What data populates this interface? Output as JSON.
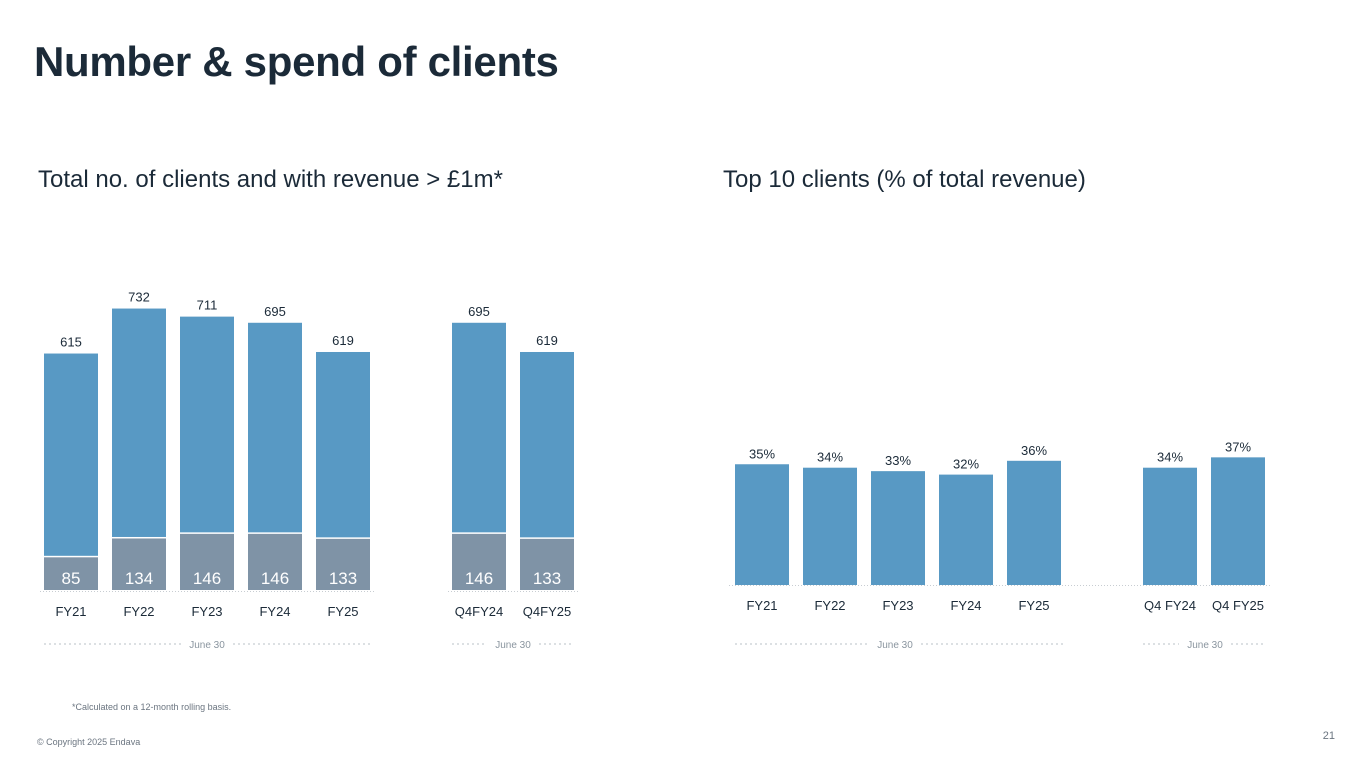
{
  "page": {
    "title": "Number & spend of clients",
    "footnote": "*Calculated on a 12-month rolling basis.",
    "copyright": "© Copyright 2025 Endava",
    "page_number": "21"
  },
  "colors": {
    "bar_blue": "#5899c4",
    "bar_grey": "#7f93a6",
    "text_dark": "#1b2a38",
    "muted": "#8a959f"
  },
  "chart_data": [
    {
      "type": "bar",
      "stacked": true,
      "title": "Total no. of clients and with revenue > £1m*",
      "categories": [
        "FY21",
        "FY22",
        "FY23",
        "FY24",
        "FY25",
        "Q4FY24",
        "Q4FY25"
      ],
      "totals": [
        615,
        732,
        711,
        695,
        619,
        695,
        619
      ],
      "series": [
        {
          "values": [
            85,
            134,
            146,
            146,
            133,
            146,
            133
          ],
          "color": "#7f93a6"
        },
        {
          "values": [
            530,
            598,
            565,
            549,
            486,
            549,
            486
          ],
          "color": "#5899c4"
        }
      ],
      "groups": [
        {
          "label": "June 30",
          "categories": [
            "FY21",
            "FY22",
            "FY23",
            "FY24",
            "FY25"
          ]
        },
        {
          "label": "June 30",
          "categories": [
            "Q4FY24",
            "Q4FY25"
          ]
        }
      ],
      "ylim": [
        0,
        800
      ],
      "grid": false,
      "legend": "none"
    },
    {
      "type": "bar",
      "title": "Top 10 clients (% of total revenue)",
      "categories": [
        "FY21",
        "FY22",
        "FY23",
        "FY24",
        "FY25",
        "Q4 FY24",
        "Q4 FY25"
      ],
      "values": [
        35,
        34,
        33,
        32,
        36,
        34,
        37
      ],
      "value_suffix": "%",
      "groups": [
        {
          "label": "June 30",
          "categories": [
            "FY21",
            "FY22",
            "FY23",
            "FY24",
            "FY25"
          ]
        },
        {
          "label": "June 30",
          "categories": [
            "Q4 FY24",
            "Q4 FY25"
          ]
        }
      ],
      "ylim": [
        0,
        100
      ],
      "grid": false,
      "legend": "none"
    }
  ]
}
